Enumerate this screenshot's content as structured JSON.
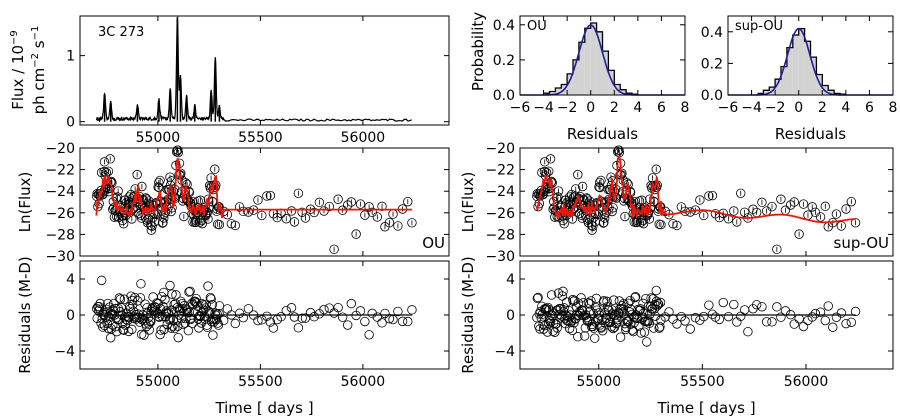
{
  "chart_data": [
    {
      "id": "light_curve",
      "type": "line",
      "annotation": "3C 273",
      "ylabel_lines": [
        "Flux / 10$^{-9}$",
        "ph cm$^{-2}$ s$^{-1}$"
      ],
      "xlim": [
        54620,
        56420
      ],
      "ylim": [
        -0.05,
        1.6
      ],
      "xticks": [
        55000,
        55500,
        56000
      ],
      "yticks": [
        0,
        1
      ],
      "grid": false,
      "flares": [
        {
          "x": 54740,
          "y": 0.4
        },
        {
          "x": 54770,
          "y": 0.25
        },
        {
          "x": 54900,
          "y": 0.22
        },
        {
          "x": 55005,
          "y": 0.3
        },
        {
          "x": 55060,
          "y": 0.45
        },
        {
          "x": 55095,
          "y": 1.55
        },
        {
          "x": 55110,
          "y": 0.65
        },
        {
          "x": 55140,
          "y": 0.35
        },
        {
          "x": 55180,
          "y": 0.2
        },
        {
          "x": 55260,
          "y": 0.45
        },
        {
          "x": 55280,
          "y": 0.95
        },
        {
          "x": 55300,
          "y": 0.2
        }
      ],
      "sparse_until": 56240
    },
    {
      "id": "hist_ou",
      "type": "bar",
      "label": "OU",
      "xlabel": "Residuals",
      "ylabel": "Probability",
      "xlim": [
        -6,
        8
      ],
      "ylim": [
        0,
        0.45
      ],
      "xticks": [
        -6,
        -4,
        -2,
        0,
        2,
        4,
        6,
        8
      ],
      "yticks": [
        0.0,
        0.2,
        0.4
      ],
      "bins": [
        -4.0,
        -3.5,
        -3.0,
        -2.5,
        -2.0,
        -1.5,
        -1.0,
        -0.5,
        0.0,
        0.5,
        1.0,
        1.5,
        2.0,
        2.5,
        3.0,
        3.5
      ],
      "values": [
        0.01,
        0.02,
        0.04,
        0.06,
        0.12,
        0.2,
        0.3,
        0.38,
        0.41,
        0.36,
        0.25,
        0.14,
        0.06,
        0.03,
        0.01,
        0.005
      ],
      "curve": {
        "mean": 0,
        "sigma": 1.0,
        "color": "#1f1f9a"
      }
    },
    {
      "id": "hist_supou",
      "type": "bar",
      "label": "sup-OU",
      "xlabel": "Residuals",
      "xlim": [
        -6,
        8
      ],
      "ylim": [
        0,
        0.5
      ],
      "xticks": [
        -6,
        -4,
        -2,
        0,
        2,
        4,
        6,
        8
      ],
      "yticks": [
        0.0,
        0.2,
        0.4
      ],
      "bins": [
        -3.5,
        -3.0,
        -2.5,
        -2.0,
        -1.5,
        -1.0,
        -0.5,
        0.0,
        0.5,
        1.0,
        1.5,
        2.0,
        2.5,
        3.0,
        3.5
      ],
      "values": [
        0.01,
        0.03,
        0.05,
        0.1,
        0.18,
        0.3,
        0.38,
        0.42,
        0.34,
        0.24,
        0.13,
        0.06,
        0.03,
        0.01,
        0.005
      ],
      "curve": {
        "mean": 0,
        "sigma": 0.95,
        "color": "#1f1f9a"
      }
    },
    {
      "id": "lnflux_ou",
      "type": "scatter",
      "label": "OU",
      "ylabel": "Ln(Flux)",
      "xlim": [
        54620,
        56420
      ],
      "ylim": [
        -30,
        -20
      ],
      "yticks": [
        -20,
        -22,
        -24,
        -26,
        -28,
        -30
      ],
      "model_color": "#e8190c",
      "baseline": -25.7
    },
    {
      "id": "lnflux_supou",
      "type": "scatter",
      "label": "sup-OU",
      "ylabel": "Ln(Flux)",
      "xlim": [
        54620,
        56420
      ],
      "ylim": [
        -30,
        -20
      ],
      "yticks": [
        -20,
        -22,
        -24,
        -26,
        -28,
        -30
      ],
      "model_color": "#e8190c",
      "baseline": -26.0
    },
    {
      "id": "resid_ou",
      "type": "scatter",
      "ylabel": "Residuals (M-D)",
      "xlabel": "Time [ days ]",
      "xlim": [
        54620,
        56420
      ],
      "ylim": [
        -6,
        6
      ],
      "xticks": [
        55000,
        55500,
        56000
      ],
      "yticks": [
        4,
        0,
        -4
      ]
    },
    {
      "id": "resid_supou",
      "type": "scatter",
      "ylabel": "Residuals (M-D)",
      "xlabel": "Time [ days ]",
      "xlim": [
        54620,
        56420
      ],
      "ylim": [
        -6,
        6
      ],
      "xticks": [
        55000,
        55500,
        56000
      ],
      "yticks": [
        4,
        0,
        -4
      ]
    }
  ]
}
